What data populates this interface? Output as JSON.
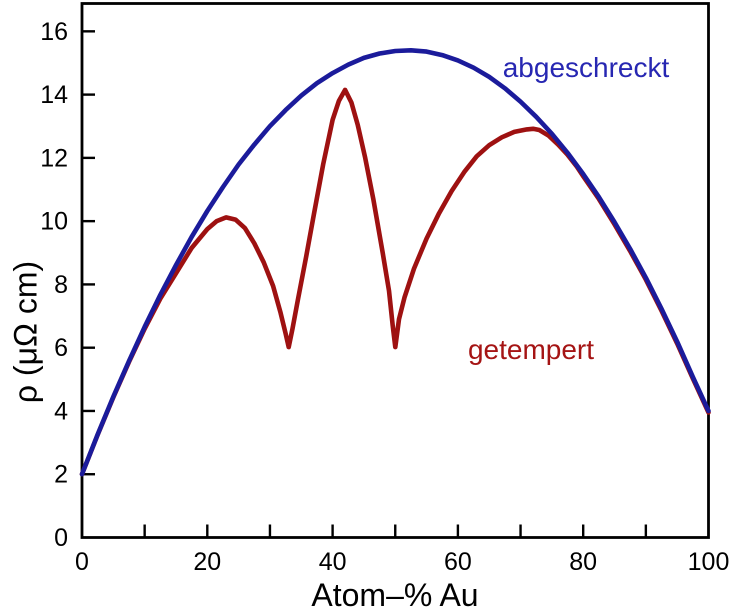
{
  "chart_data": {
    "type": "line",
    "title": "",
    "xlabel": "Atom–% Au",
    "ylabel": "ρ (μΩ cm)",
    "xlim": [
      0,
      100
    ],
    "ylim": [
      0,
      16.88
    ],
    "grid": false,
    "legend_position": "inline-annotations",
    "background": "#ffffff",
    "axis_color": "#000000",
    "x_ticks": {
      "tick_values": [
        10,
        20,
        30,
        40,
        50,
        60,
        70,
        80,
        90
      ],
      "labeled_values": [
        0,
        20,
        40,
        60,
        80,
        100
      ],
      "labels": [
        "0",
        "20",
        "40",
        "60",
        "80",
        "100"
      ]
    },
    "y_ticks": {
      "tick_values": [
        2,
        4,
        6,
        8,
        10,
        12,
        14,
        16
      ],
      "labeled_values": [
        0,
        2,
        4,
        6,
        8,
        10,
        12,
        14,
        16
      ],
      "labels": [
        "0",
        "2",
        "4",
        "6",
        "8",
        "10",
        "12",
        "14",
        "16"
      ]
    },
    "series": [
      {
        "name": "abgeschreckt",
        "color": "#1b1b9b",
        "points": [
          [
            0,
            2
          ],
          [
            2.5,
            3.26
          ],
          [
            5,
            4.45
          ],
          [
            7.5,
            5.58
          ],
          [
            10,
            6.66
          ],
          [
            12.5,
            7.67
          ],
          [
            15,
            8.61
          ],
          [
            17.5,
            9.5
          ],
          [
            20,
            10.32
          ],
          [
            22.5,
            11.08
          ],
          [
            25,
            11.79
          ],
          [
            27.5,
            12.42
          ],
          [
            30,
            13.0
          ],
          [
            32.5,
            13.51
          ],
          [
            35,
            13.97
          ],
          [
            37.5,
            14.36
          ],
          [
            40,
            14.68
          ],
          [
            42.5,
            14.95
          ],
          [
            45,
            15.16
          ],
          [
            47.5,
            15.3
          ],
          [
            50,
            15.38
          ],
          [
            52.5,
            15.4
          ],
          [
            55,
            15.36
          ],
          [
            57.5,
            15.25
          ],
          [
            60,
            15.08
          ],
          [
            62.5,
            14.85
          ],
          [
            65,
            14.56
          ],
          [
            67.5,
            14.2
          ],
          [
            70,
            13.78
          ],
          [
            72.5,
            13.3
          ],
          [
            75,
            12.76
          ],
          [
            77.5,
            12.16
          ],
          [
            80,
            11.49
          ],
          [
            82.5,
            10.76
          ],
          [
            85,
            9.97
          ],
          [
            87.5,
            9.12
          ],
          [
            90,
            8.21
          ],
          [
            92.5,
            7.23
          ],
          [
            95,
            6.19
          ],
          [
            97.5,
            5.08
          ],
          [
            100,
            4.0
          ]
        ]
      },
      {
        "name": "getempert",
        "color": "#9e1111",
        "points": [
          [
            0,
            2
          ],
          [
            2.5,
            3.25
          ],
          [
            5,
            4.43
          ],
          [
            7.5,
            5.55
          ],
          [
            10,
            6.6
          ],
          [
            12.5,
            7.55
          ],
          [
            15,
            8.35
          ],
          [
            17.5,
            9.15
          ],
          [
            20,
            9.75
          ],
          [
            21.5,
            10.0
          ],
          [
            23,
            10.12
          ],
          [
            24.5,
            10.05
          ],
          [
            26,
            9.78
          ],
          [
            27.5,
            9.3
          ],
          [
            29,
            8.7
          ],
          [
            30.5,
            7.95
          ],
          [
            31.7,
            7.1
          ],
          [
            32.5,
            6.45
          ],
          [
            33,
            6.02
          ],
          [
            33.6,
            6.6
          ],
          [
            34.5,
            7.55
          ],
          [
            35.8,
            8.9
          ],
          [
            37,
            10.2
          ],
          [
            38.5,
            11.8
          ],
          [
            40,
            13.2
          ],
          [
            41,
            13.8
          ],
          [
            42,
            14.15
          ],
          [
            43,
            13.75
          ],
          [
            44,
            13.05
          ],
          [
            45.2,
            12.0
          ],
          [
            46.5,
            10.7
          ],
          [
            48,
            9.0
          ],
          [
            49,
            7.8
          ],
          [
            49.6,
            6.7
          ],
          [
            50,
            6.02
          ],
          [
            50.6,
            6.9
          ],
          [
            51.5,
            7.6
          ],
          [
            53,
            8.5
          ],
          [
            55,
            9.45
          ],
          [
            57,
            10.25
          ],
          [
            59,
            10.95
          ],
          [
            61,
            11.55
          ],
          [
            63,
            12.05
          ],
          [
            65,
            12.4
          ],
          [
            67,
            12.65
          ],
          [
            69,
            12.82
          ],
          [
            71,
            12.9
          ],
          [
            72,
            12.92
          ],
          [
            73,
            12.88
          ],
          [
            74.5,
            12.7
          ],
          [
            76,
            12.42
          ],
          [
            77.5,
            12.1
          ],
          [
            79,
            11.72
          ],
          [
            80,
            11.42
          ],
          [
            82.5,
            10.7
          ],
          [
            85,
            9.9
          ],
          [
            87.5,
            9.05
          ],
          [
            90,
            8.15
          ],
          [
            92.5,
            7.17
          ],
          [
            95,
            6.13
          ],
          [
            97.5,
            5.03
          ],
          [
            100,
            3.95
          ]
        ]
      }
    ],
    "annotations": [
      {
        "text": "abgeschreckt",
        "color": "#2727b2",
        "x": 80,
        "y": 14.8
      },
      {
        "text": "getempert",
        "color": "#a51414",
        "x": 71,
        "y": 5.9
      }
    ]
  }
}
